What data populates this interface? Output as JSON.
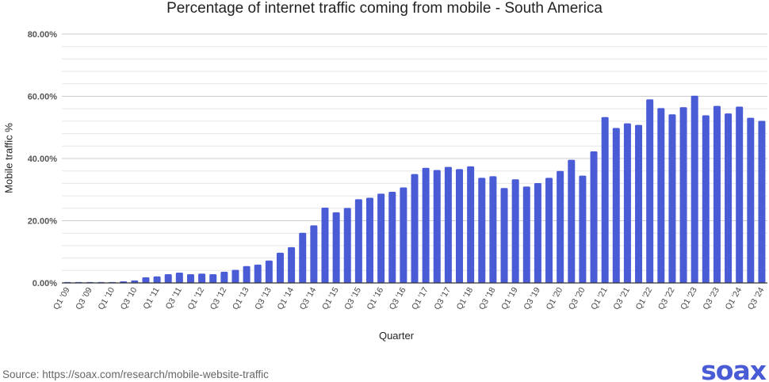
{
  "chart_data": {
    "type": "bar",
    "title": "Percentage of internet traffic coming from mobile - South America",
    "xlabel": "Quarter",
    "ylabel": "Mobile traffic %",
    "ylim": [
      0,
      80
    ],
    "yticks": [
      "0.00%",
      "20.00%",
      "40.00%",
      "60.00%",
      "80.00%"
    ],
    "grid": true,
    "bar_color": "#4a5bd6",
    "categories": [
      "Q1 '09",
      "Q2 '09",
      "Q3 '09",
      "Q4 '09",
      "Q1 '10",
      "Q2 '10",
      "Q3 '10",
      "Q4 '10",
      "Q1 '11",
      "Q2 '11",
      "Q3 '11",
      "Q4 '11",
      "Q1 '12",
      "Q2 '12",
      "Q3 '12",
      "Q4 '12",
      "Q1 '13",
      "Q2 '13",
      "Q3 '13",
      "Q4 '13",
      "Q1 '14",
      "Q2 '14",
      "Q3 '14",
      "Q4 '14",
      "Q1 '15",
      "Q2 '15",
      "Q3 '15",
      "Q4 '15",
      "Q1 '16",
      "Q2 '16",
      "Q3 '16",
      "Q4 '16",
      "Q1 '17",
      "Q2 '17",
      "Q3 '17",
      "Q4 '17",
      "Q1 '18",
      "Q2 '18",
      "Q3 '18",
      "Q4 '18",
      "Q1 '19",
      "Q2 '19",
      "Q3 '19",
      "Q4 '19",
      "Q1 '20",
      "Q2 '20",
      "Q3 '20",
      "Q4 '20",
      "Q1 '21",
      "Q2 '21",
      "Q3 '21",
      "Q4 '21",
      "Q1 '22",
      "Q2 '22",
      "Q3 '22",
      "Q4 '22",
      "Q1 '23",
      "Q2 '23",
      "Q3 '23",
      "Q4 '23",
      "Q1 '24",
      "Q2 '24",
      "Q3 '24"
    ],
    "values": [
      0.3,
      0.3,
      0.3,
      0.3,
      0.3,
      0.5,
      0.8,
      1.8,
      2.1,
      2.8,
      3.3,
      2.8,
      3.0,
      2.8,
      3.6,
      4.2,
      5.4,
      5.9,
      7.2,
      9.7,
      11.5,
      16.1,
      18.5,
      24.2,
      22.7,
      24.1,
      26.9,
      27.4,
      28.7,
      29.3,
      30.7,
      35.0,
      37.0,
      36.3,
      37.3,
      36.6,
      37.5,
      33.8,
      34.3,
      30.5,
      33.3,
      31.0,
      32.1,
      33.8,
      36.0,
      39.6,
      34.5,
      42.3,
      53.3,
      49.8,
      51.3,
      50.8,
      59.0,
      56.2,
      54.2,
      56.5,
      60.2,
      53.9,
      56.9,
      54.5,
      56.7,
      53.1,
      52.1
    ]
  },
  "footer": {
    "source": "Source: https://soax.com/research/mobile-website-traffic",
    "logo": "soax"
  }
}
